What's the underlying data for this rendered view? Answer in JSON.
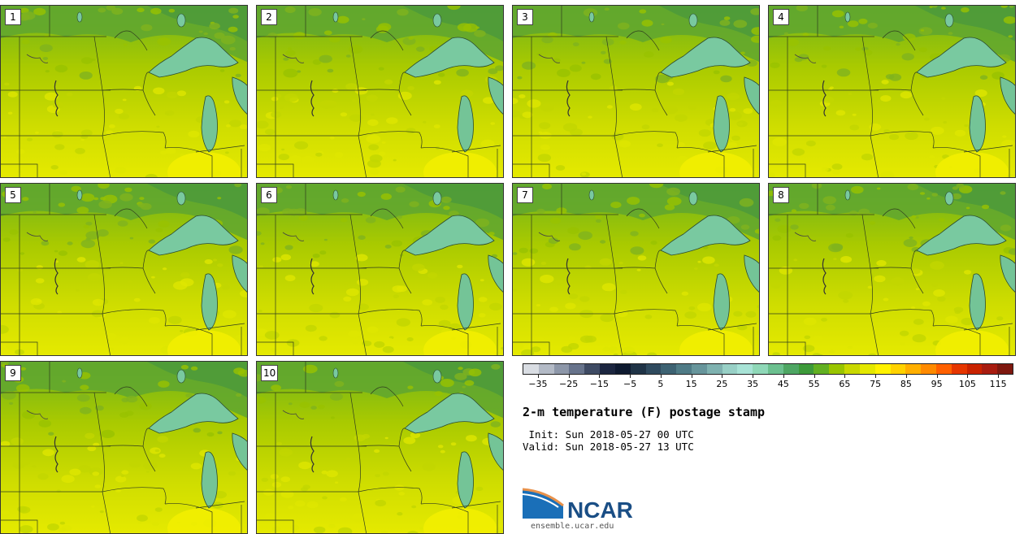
{
  "panels": [
    {
      "label": "1"
    },
    {
      "label": "2"
    },
    {
      "label": "3"
    },
    {
      "label": "4"
    },
    {
      "label": "5"
    },
    {
      "label": "6"
    },
    {
      "label": "7"
    },
    {
      "label": "8"
    },
    {
      "label": "9"
    },
    {
      "label": "10"
    }
  ],
  "colorbar": {
    "colors": [
      "#d9dde3",
      "#b3bac6",
      "#8d97a9",
      "#67738b",
      "#3e4a63",
      "#1c2640",
      "#0e1a30",
      "#1f3346",
      "#2f4a5e",
      "#3d6272",
      "#4f7b86",
      "#67959b",
      "#7fb2b0",
      "#98d0c6",
      "#a8e3d6",
      "#8fd8b8",
      "#6cc08f",
      "#4ea663",
      "#3d9a3a",
      "#62b022",
      "#99c500",
      "#c9d800",
      "#e4e800",
      "#fff200",
      "#ffd200",
      "#ffaf00",
      "#ff8a00",
      "#ff6000",
      "#e63600",
      "#c92200",
      "#a81c10",
      "#7e180f"
    ],
    "tick_labels": [
      "−35",
      "−25",
      "−15",
      "−5",
      "5",
      "15",
      "25",
      "35",
      "45",
      "55",
      "65",
      "75",
      "85",
      "95",
      "105",
      "115"
    ]
  },
  "title": "2-m temperature (F) postage stamp",
  "init": "Init: Sun 2018-05-27 00 UTC",
  "valid": "Valid: Sun 2018-05-27 13 UTC",
  "logo": {
    "name": "NCAR",
    "url": "ensemble.ucar.edu"
  }
}
